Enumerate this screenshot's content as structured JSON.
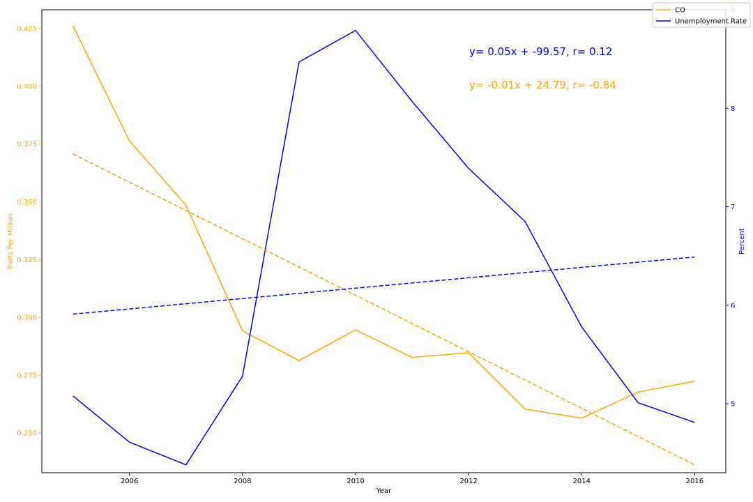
{
  "chart_data": {
    "type": "line",
    "title": "",
    "xlabel": "Year",
    "ylabel_left": "Parts Per Million",
    "ylabel_right": "Percent",
    "xlim": [
      2004.45,
      2016.55
    ],
    "ylim_left": [
      0.2328,
      0.4331
    ],
    "ylim_right": [
      4.3,
      9.0
    ],
    "x_ticks": [
      "2006",
      "2008",
      "2010",
      "2012",
      "2014",
      "2016"
    ],
    "y_left_ticks": [
      "0.250",
      "0.275",
      "0.300",
      "0.325",
      "0.350",
      "0.375",
      "0.400",
      "0.425"
    ],
    "y_right_ticks": [
      "5",
      "6",
      "7",
      "8",
      "9"
    ],
    "colors": {
      "co": "#ffa500",
      "unemployment": "#0000ff"
    },
    "x": [
      2005,
      2006,
      2007,
      2008,
      2009,
      2010,
      2011,
      2012,
      2013,
      2014,
      2015,
      2016
    ],
    "series": [
      {
        "name": "CO",
        "axis": "left",
        "color": "#ffa500",
        "values": [
          0.4262,
          0.3764,
          0.3485,
          0.2942,
          0.2813,
          0.2946,
          0.2827,
          0.2847,
          0.2603,
          0.2564,
          0.2677,
          0.2724
        ]
      },
      {
        "name": "Unemployment Rate",
        "axis": "right",
        "color": "#0000ff",
        "values": [
          5.08,
          4.61,
          4.38,
          5.28,
          8.47,
          8.79,
          8.07,
          7.39,
          6.85,
          5.78,
          5.01,
          4.81
        ]
      }
    ],
    "trendlines": [
      {
        "axis": "left",
        "color": "#ffa500",
        "style": "dashed",
        "x": [
          2005,
          2016
        ],
        "y": [
          0.3707,
          0.2362
        ]
      },
      {
        "axis": "right",
        "color": "#0000ff",
        "style": "dashed",
        "x": [
          2005,
          2016
        ],
        "y": [
          5.91,
          6.49
        ]
      }
    ],
    "annotations": [
      {
        "text": "y= 0.05x + -99.57, r= 0.12",
        "color": "#0000ff"
      },
      {
        "text": "y= -0.01x + 24.79, r= -0.84",
        "color": "#ffa500"
      }
    ],
    "legend": {
      "placement": "top-right",
      "entries": [
        {
          "label": "CO",
          "color": "#ffa500"
        },
        {
          "label": "Unemployment Rate",
          "color": "#0000ff"
        }
      ]
    },
    "grid": false
  }
}
